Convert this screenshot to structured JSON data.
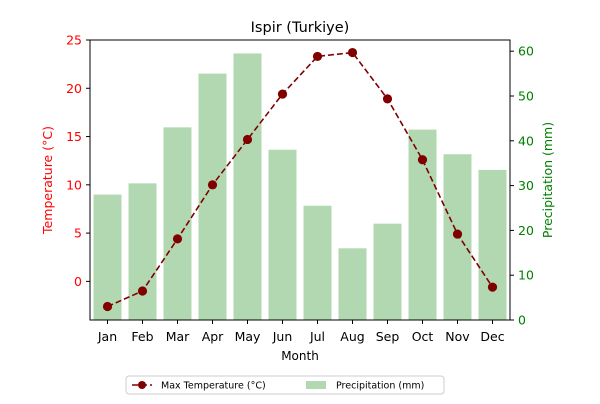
{
  "chart_data": {
    "type": "bar",
    "title": "Ispir (Turkiye)",
    "xlabel": "Month",
    "categories": [
      "Jan",
      "Feb",
      "Mar",
      "Apr",
      "May",
      "Jun",
      "Jul",
      "Aug",
      "Sep",
      "Oct",
      "Nov",
      "Dec"
    ],
    "series": [
      {
        "name": "Max Temperature (°C)",
        "type": "line",
        "axis": "left",
        "color": "#800000",
        "values": [
          -2.6,
          -1.0,
          4.4,
          10.0,
          14.7,
          19.4,
          23.3,
          23.7,
          18.9,
          12.6,
          4.9,
          -0.6
        ]
      },
      {
        "name": "Precipitation (mm)",
        "type": "bar",
        "axis": "right",
        "color": "#b2d8b2",
        "values": [
          28,
          30.5,
          43,
          55,
          59.5,
          38,
          25.5,
          16,
          21.5,
          42.5,
          37,
          33.5
        ]
      }
    ],
    "left_axis": {
      "label": "Temperature (°C)",
      "color": "#ff0000",
      "ylim": [
        -4,
        25
      ],
      "ticks": [
        0,
        5,
        10,
        15,
        20,
        25
      ]
    },
    "right_axis": {
      "label": "Precipitation (mm)",
      "color": "#008000",
      "ylim": [
        0,
        62.5
      ],
      "ticks": [
        0,
        10,
        20,
        30,
        40,
        50,
        60
      ]
    },
    "legend": {
      "placement": "bottom-center",
      "entries": [
        "Max Temperature (°C)",
        "Precipitation (mm)"
      ]
    },
    "grid": false
  }
}
